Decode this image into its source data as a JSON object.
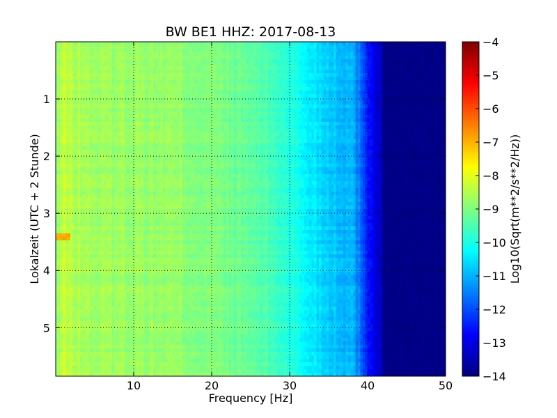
{
  "chart_data": {
    "type": "heatmap",
    "title": "BW BE1 HHZ: 2017-08-13",
    "xlabel": "Frequency [Hz]",
    "ylabel": "Lokalzeit (UTC + 2 Stunde)",
    "xlim": [
      0,
      50
    ],
    "ylim": [
      5.85,
      0
    ],
    "x_ticks": [
      {
        "value": 10,
        "label": "10"
      },
      {
        "value": 20,
        "label": "20"
      },
      {
        "value": 30,
        "label": "30"
      },
      {
        "value": 40,
        "label": "40"
      },
      {
        "value": 50,
        "label": "50"
      }
    ],
    "y_ticks": [
      {
        "value": 1,
        "label": "1"
      },
      {
        "value": 2,
        "label": "2"
      },
      {
        "value": 3,
        "label": "3"
      },
      {
        "value": 4,
        "label": "4"
      },
      {
        "value": 5,
        "label": "5"
      }
    ],
    "grid": true,
    "colormap": "jet",
    "colorbar": {
      "label": "Log10(Sqrt(m**2/s**2/Hz))",
      "range": [
        -14,
        -4
      ],
      "ticks": [
        {
          "value": -4,
          "label": "−4"
        },
        {
          "value": -5,
          "label": "−5"
        },
        {
          "value": -6,
          "label": "−6"
        },
        {
          "value": -7,
          "label": "−7"
        },
        {
          "value": -8,
          "label": "−8"
        },
        {
          "value": -9,
          "label": "−9"
        },
        {
          "value": -10,
          "label": "−10"
        },
        {
          "value": -11,
          "label": "−11"
        },
        {
          "value": -12,
          "label": "−12"
        },
        {
          "value": -13,
          "label": "−13"
        },
        {
          "value": -14,
          "label": "−14"
        }
      ]
    },
    "spectral_profile": {
      "frequency_hz": [
        0,
        1,
        2,
        5,
        10,
        15,
        20,
        25,
        28,
        30,
        32,
        35,
        38,
        39,
        40,
        41,
        42,
        43,
        44,
        45,
        50
      ],
      "log10_amplitude": [
        -8.9,
        -8.3,
        -8.5,
        -8.7,
        -8.7,
        -8.8,
        -9.0,
        -9.3,
        -9.6,
        -9.9,
        -10.3,
        -10.7,
        -11.0,
        -11.6,
        -12.4,
        -13.0,
        -13.5,
        -13.8,
        -14.0,
        -14.0,
        -14.0
      ]
    }
  }
}
